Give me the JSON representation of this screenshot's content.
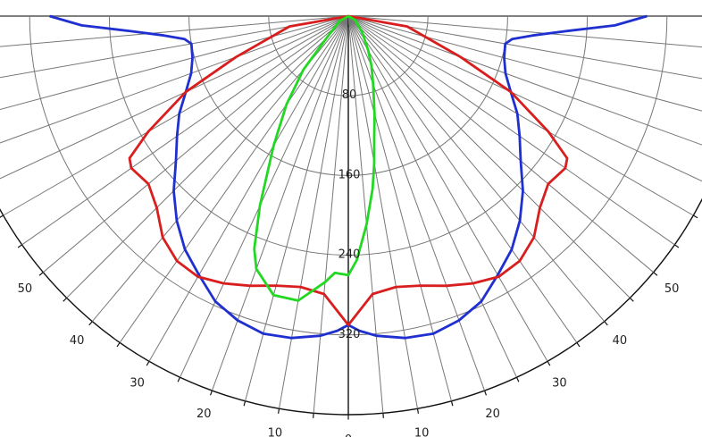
{
  "chart_data": {
    "type": "polar",
    "angular_ticks_left": [
      "50",
      "40",
      "30",
      "20",
      "10"
    ],
    "angular_tick_center": "0",
    "angular_ticks_right": [
      "10",
      "20",
      "30",
      "40",
      "50"
    ],
    "radial_tick_labels": [
      "80",
      "160",
      "240",
      "320"
    ],
    "radial_values": [
      80,
      160,
      240,
      320
    ],
    "angle_step_deg": 5,
    "angle_range_deg": [
      -90,
      90
    ],
    "max_radius": 400,
    "series": [
      {
        "color": "#1f2fd0",
        "points_deg_r": [
          [
            -90,
            300
          ],
          [
            -88,
            268
          ],
          [
            -86,
            218
          ],
          [
            -84,
            186
          ],
          [
            -82,
            166
          ],
          [
            -80,
            160
          ],
          [
            -75,
            162
          ],
          [
            -70,
            168
          ],
          [
            -65,
            180
          ],
          [
            -60,
            196
          ],
          [
            -55,
            210
          ],
          [
            -50,
            226
          ],
          [
            -45,
            248
          ],
          [
            -40,
            268
          ],
          [
            -35,
            286
          ],
          [
            -30,
            300
          ],
          [
            -25,
            316
          ],
          [
            -20,
            325
          ],
          [
            -15,
            330
          ],
          [
            -10,
            328
          ],
          [
            -5,
            322
          ],
          [
            -2,
            316
          ],
          [
            0,
            310
          ],
          [
            2,
            316
          ],
          [
            5,
            322
          ],
          [
            10,
            328
          ],
          [
            15,
            330
          ],
          [
            20,
            325
          ],
          [
            25,
            316
          ],
          [
            30,
            300
          ],
          [
            35,
            286
          ],
          [
            40,
            268
          ],
          [
            45,
            248
          ],
          [
            50,
            226
          ],
          [
            55,
            210
          ],
          [
            60,
            196
          ],
          [
            65,
            180
          ],
          [
            70,
            168
          ],
          [
            75,
            162
          ],
          [
            80,
            160
          ],
          [
            82,
            166
          ],
          [
            84,
            186
          ],
          [
            86,
            218
          ],
          [
            88,
            268
          ],
          [
            90,
            300
          ]
        ]
      },
      {
        "color": "#d81e1e",
        "points_deg_r": [
          [
            -90,
            0
          ],
          [
            -80,
            60
          ],
          [
            -70,
            120
          ],
          [
            -65,
            180
          ],
          [
            -60,
            232
          ],
          [
            -57,
            262
          ],
          [
            -55,
            266
          ],
          [
            -50,
            262
          ],
          [
            -45,
            272
          ],
          [
            -40,
            290
          ],
          [
            -35,
            300
          ],
          [
            -30,
            302
          ],
          [
            -25,
            296
          ],
          [
            -20,
            288
          ],
          [
            -15,
            280
          ],
          [
            -10,
            276
          ],
          [
            -5,
            280
          ],
          [
            0,
            310
          ],
          [
            5,
            280
          ],
          [
            10,
            276
          ],
          [
            15,
            280
          ],
          [
            20,
            288
          ],
          [
            25,
            296
          ],
          [
            30,
            302
          ],
          [
            35,
            300
          ],
          [
            40,
            290
          ],
          [
            45,
            272
          ],
          [
            50,
            262
          ],
          [
            55,
            266
          ],
          [
            57,
            262
          ],
          [
            60,
            232
          ],
          [
            65,
            180
          ],
          [
            70,
            120
          ],
          [
            80,
            60
          ],
          [
            90,
            0
          ]
        ]
      },
      {
        "color": "#22d822",
        "points_deg_r": [
          [
            -90,
            0
          ],
          [
            -60,
            10
          ],
          [
            -45,
            30
          ],
          [
            -40,
            70
          ],
          [
            -35,
            108
          ],
          [
            -30,
            150
          ],
          [
            -25,
            210
          ],
          [
            -22,
            252
          ],
          [
            -20,
            270
          ],
          [
            -15,
            290
          ],
          [
            -10,
            290
          ],
          [
            -5,
            268
          ],
          [
            -3,
            258
          ],
          [
            0,
            260
          ],
          [
            2,
            245
          ],
          [
            5,
            210
          ],
          [
            8,
            175
          ],
          [
            10,
            150
          ],
          [
            12,
            125
          ],
          [
            15,
            102
          ],
          [
            20,
            73
          ],
          [
            25,
            55
          ],
          [
            30,
            40
          ],
          [
            40,
            22
          ],
          [
            60,
            8
          ],
          [
            90,
            0
          ]
        ]
      }
    ]
  }
}
